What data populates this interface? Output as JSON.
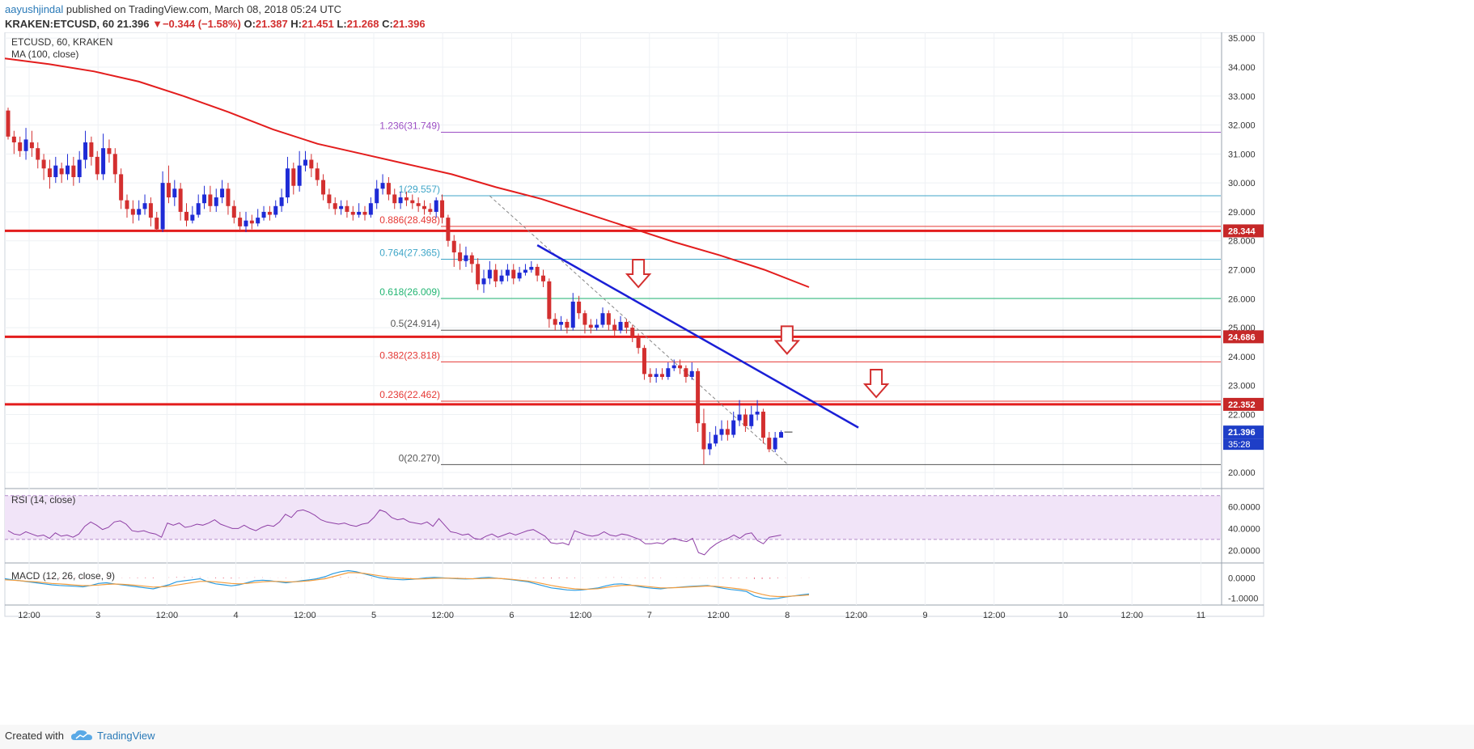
{
  "header": {
    "author": "aayushjindal",
    "published": "published on TradingView.com, March 08, 2018 05:24 UTC",
    "symbol": "KRAKEN:ETCUSD, 60",
    "price": "21.396",
    "change_arrow": "▼",
    "change": "−0.344 (−1.58%)",
    "o_label": "O:",
    "o_value": "21.387",
    "h_label": "H:",
    "h_value": "21.451",
    "l_label": "L:",
    "l_value": "21.268",
    "c_label": "C:",
    "c_value": "21.396"
  },
  "footer": {
    "created_with": "Created with",
    "brand": "TradingView"
  },
  "colors": {
    "up": "#1e2bd6",
    "down": "#d32f2f",
    "ma": "#e31d1d",
    "trend": "#1a1fd6",
    "fib_red": "#e53935",
    "fib_blue": "#3fa6c8",
    "fib_green": "#22b573",
    "fib_purple": "#9c4fc4",
    "rsi": "#8e3fa5",
    "macd": "#2a9be0",
    "signal": "#f39c3c",
    "hist": "#e0304d"
  },
  "chart_data": {
    "type": "candlestick",
    "title": "ETCUSD, 60, KRAKEN",
    "indicator_label": "MA (100, close)",
    "ylim": [
      19.5,
      35.2
    ],
    "y_ticks": [
      "20.000",
      "21.000",
      "22.000",
      "23.000",
      "24.000",
      "25.000",
      "26.000",
      "27.000",
      "28.000",
      "29.000",
      "30.000",
      "31.000",
      "32.000",
      "33.000",
      "34.000",
      "35.000"
    ],
    "x_ticks": [
      "12:00",
      "3",
      "12:00",
      "4",
      "12:00",
      "5",
      "12:00",
      "6",
      "12:00",
      "7",
      "12:00",
      "8",
      "12:00",
      "9",
      "12:00",
      "10",
      "12:00",
      "11"
    ],
    "candles": [
      [
        32.5,
        31.6,
        32.6,
        31.5
      ],
      [
        31.6,
        31.4,
        31.8,
        31.0
      ],
      [
        31.4,
        31.1,
        31.6,
        30.9
      ],
      [
        31.1,
        31.5,
        31.9,
        30.8
      ],
      [
        31.4,
        31.2,
        31.8,
        30.9
      ],
      [
        31.2,
        30.8,
        31.4,
        30.5
      ],
      [
        30.8,
        30.5,
        31.0,
        30.1
      ],
      [
        30.5,
        30.2,
        30.8,
        29.8
      ],
      [
        30.2,
        30.6,
        30.9,
        30.0
      ],
      [
        30.5,
        30.3,
        30.7,
        30.0
      ],
      [
        30.3,
        30.6,
        31.0,
        30.1
      ],
      [
        30.6,
        30.2,
        30.9,
        29.9
      ],
      [
        30.2,
        30.8,
        31.1,
        30.0
      ],
      [
        30.8,
        31.4,
        31.8,
        30.5
      ],
      [
        31.4,
        30.9,
        31.6,
        30.6
      ],
      [
        30.9,
        30.3,
        31.1,
        30.1
      ],
      [
        30.3,
        31.2,
        31.7,
        30.1
      ],
      [
        31.2,
        31.0,
        31.5,
        30.7
      ],
      [
        31.0,
        30.3,
        31.2,
        30.0
      ],
      [
        30.3,
        29.4,
        30.5,
        29.1
      ],
      [
        29.4,
        29.1,
        29.6,
        28.8
      ],
      [
        29.1,
        28.9,
        29.4,
        28.6
      ],
      [
        28.9,
        29.1,
        29.4,
        28.7
      ],
      [
        29.1,
        29.3,
        29.6,
        28.9
      ],
      [
        29.3,
        28.8,
        29.5,
        28.5
      ],
      [
        28.8,
        28.4,
        29.0,
        28.3
      ],
      [
        28.4,
        30.0,
        30.4,
        28.3
      ],
      [
        30.0,
        29.5,
        30.6,
        29.3
      ],
      [
        29.5,
        29.8,
        30.1,
        29.2
      ],
      [
        29.8,
        29.0,
        30.0,
        28.7
      ],
      [
        29.0,
        28.7,
        29.3,
        28.5
      ],
      [
        28.7,
        28.9,
        29.2,
        28.6
      ],
      [
        28.9,
        29.3,
        29.6,
        28.8
      ],
      [
        29.3,
        29.6,
        29.9,
        29.1
      ],
      [
        29.6,
        29.2,
        29.9,
        29.0
      ],
      [
        29.2,
        29.5,
        29.8,
        29.0
      ],
      [
        29.5,
        29.8,
        30.1,
        29.3
      ],
      [
        29.8,
        29.2,
        30.0,
        28.9
      ],
      [
        29.2,
        28.8,
        29.4,
        28.6
      ],
      [
        28.8,
        28.5,
        29.0,
        28.3
      ],
      [
        28.5,
        28.7,
        29.0,
        28.3
      ],
      [
        28.7,
        28.6,
        28.9,
        28.4
      ],
      [
        28.6,
        28.8,
        29.1,
        28.5
      ],
      [
        28.8,
        29.0,
        29.2,
        28.7
      ],
      [
        29.0,
        28.9,
        29.2,
        28.7
      ],
      [
        28.9,
        29.2,
        29.4,
        28.8
      ],
      [
        29.2,
        29.5,
        29.8,
        29.0
      ],
      [
        29.5,
        30.5,
        30.9,
        29.3
      ],
      [
        30.5,
        29.9,
        30.7,
        29.6
      ],
      [
        29.9,
        30.6,
        31.1,
        29.7
      ],
      [
        30.6,
        30.8,
        31.1,
        30.4
      ],
      [
        30.8,
        30.5,
        31.0,
        30.2
      ],
      [
        30.5,
        30.1,
        30.7,
        29.9
      ],
      [
        30.1,
        29.6,
        30.3,
        29.4
      ],
      [
        29.6,
        29.3,
        29.8,
        29.1
      ],
      [
        29.3,
        29.1,
        29.5,
        28.9
      ],
      [
        29.1,
        29.2,
        29.4,
        28.9
      ],
      [
        29.2,
        29.0,
        29.4,
        28.8
      ],
      [
        29.0,
        28.9,
        29.2,
        28.7
      ],
      [
        28.9,
        29.0,
        29.3,
        28.8
      ],
      [
        29.0,
        28.9,
        29.2,
        28.7
      ],
      [
        28.9,
        29.3,
        29.5,
        28.8
      ],
      [
        29.3,
        29.8,
        30.1,
        29.1
      ],
      [
        29.8,
        30.0,
        30.3,
        29.6
      ],
      [
        30.0,
        29.6,
        30.2,
        29.4
      ],
      [
        29.6,
        29.3,
        29.8,
        29.1
      ],
      [
        29.3,
        29.5,
        29.7,
        29.1
      ],
      [
        29.5,
        29.4,
        29.7,
        29.2
      ],
      [
        29.4,
        29.3,
        29.6,
        29.1
      ],
      [
        29.3,
        29.2,
        29.5,
        29.0
      ],
      [
        29.2,
        29.1,
        29.4,
        28.9
      ],
      [
        29.1,
        29.0,
        29.3,
        28.9
      ],
      [
        29.0,
        29.4,
        29.5,
        28.8
      ],
      [
        29.4,
        28.8,
        29.6,
        28.6
      ],
      [
        28.8,
        28.0,
        28.9,
        27.8
      ],
      [
        28.0,
        27.6,
        28.2,
        27.1
      ],
      [
        27.6,
        27.3,
        27.9,
        27.0
      ],
      [
        27.3,
        27.5,
        27.8,
        27.1
      ],
      [
        27.5,
        27.2,
        27.6,
        26.9
      ],
      [
        27.2,
        26.5,
        27.4,
        26.3
      ],
      [
        26.5,
        26.7,
        27.0,
        26.2
      ],
      [
        26.7,
        27.0,
        27.3,
        26.5
      ],
      [
        27.0,
        26.6,
        27.2,
        26.4
      ],
      [
        26.6,
        26.8,
        27.0,
        26.5
      ],
      [
        26.8,
        27.0,
        27.2,
        26.6
      ],
      [
        27.0,
        26.7,
        27.2,
        26.5
      ],
      [
        26.7,
        26.9,
        27.1,
        26.6
      ],
      [
        26.9,
        27.0,
        27.2,
        26.8
      ],
      [
        27.0,
        27.1,
        27.3,
        26.9
      ],
      [
        27.1,
        26.8,
        27.2,
        26.6
      ],
      [
        26.8,
        26.6,
        27.0,
        26.4
      ],
      [
        26.6,
        25.3,
        26.7,
        25.0
      ],
      [
        25.3,
        25.1,
        25.5,
        24.9
      ],
      [
        25.1,
        25.2,
        25.4,
        24.9
      ],
      [
        25.2,
        25.0,
        25.3,
        24.8
      ],
      [
        25.0,
        25.9,
        26.2,
        24.9
      ],
      [
        25.9,
        25.5,
        26.1,
        25.3
      ],
      [
        25.5,
        25.1,
        25.6,
        24.8
      ],
      [
        25.1,
        25.0,
        25.3,
        24.8
      ],
      [
        25.0,
        25.1,
        25.3,
        24.9
      ],
      [
        25.1,
        25.5,
        25.7,
        25.0
      ],
      [
        25.5,
        25.1,
        25.6,
        24.9
      ],
      [
        25.1,
        24.9,
        25.3,
        24.7
      ],
      [
        24.9,
        25.2,
        25.4,
        24.8
      ],
      [
        25.2,
        25.0,
        25.3,
        24.8
      ],
      [
        25.0,
        24.7,
        25.1,
        24.5
      ],
      [
        24.7,
        24.3,
        24.8,
        24.1
      ],
      [
        24.3,
        23.4,
        24.4,
        23.2
      ],
      [
        23.4,
        23.3,
        23.6,
        23.1
      ],
      [
        23.3,
        23.4,
        23.6,
        23.1
      ],
      [
        23.4,
        23.3,
        23.6,
        23.2
      ],
      [
        23.3,
        23.6,
        23.8,
        23.2
      ],
      [
        23.6,
        23.7,
        23.9,
        23.5
      ],
      [
        23.7,
        23.6,
        23.9,
        23.4
      ],
      [
        23.6,
        23.3,
        23.7,
        23.1
      ],
      [
        23.3,
        23.5,
        23.8,
        23.2
      ],
      [
        23.5,
        21.7,
        23.6,
        21.4
      ],
      [
        21.7,
        20.8,
        22.2,
        20.27
      ],
      [
        20.8,
        21.0,
        21.4,
        20.6
      ],
      [
        21.0,
        21.3,
        21.6,
        20.9
      ],
      [
        21.3,
        21.5,
        21.8,
        21.1
      ],
      [
        21.5,
        21.3,
        21.8,
        21.1
      ],
      [
        21.3,
        21.8,
        22.1,
        21.2
      ],
      [
        21.8,
        22.0,
        22.5,
        21.6
      ],
      [
        22.0,
        21.6,
        22.2,
        21.4
      ],
      [
        21.6,
        22.0,
        22.3,
        21.5
      ],
      [
        22.0,
        22.1,
        22.5,
        21.8
      ],
      [
        22.1,
        21.2,
        22.2,
        21.0
      ],
      [
        21.2,
        20.8,
        21.4,
        20.7
      ],
      [
        20.8,
        21.2,
        21.4,
        20.7
      ],
      [
        21.2,
        21.396,
        21.451,
        21.268
      ]
    ],
    "moving_average": {
      "label": "MA (100, close)",
      "values": [
        34.3,
        34.1,
        33.85,
        33.5,
        33.0,
        32.45,
        31.85,
        31.35,
        31.0,
        30.65,
        30.3,
        29.85,
        29.45,
        28.95,
        28.45,
        27.95,
        27.5,
        27.0,
        26.4
      ]
    },
    "fib_levels": [
      {
        "label": "1.236(31.749)",
        "value": 31.749,
        "color": "#9c4fc4"
      },
      {
        "label": "1(29.557)",
        "value": 29.557,
        "color": "#3fa6c8"
      },
      {
        "label": "0.886(28.498)",
        "value": 28.498,
        "color": "#e53935"
      },
      {
        "label": "0.764(27.365)",
        "value": 27.365,
        "color": "#3fa6c8"
      },
      {
        "label": "0.618(26.009)",
        "value": 26.009,
        "color": "#22b573"
      },
      {
        "label": "0.5(24.914)",
        "value": 24.914,
        "color": "#555555"
      },
      {
        "label": "0.382(23.818)",
        "value": 23.818,
        "color": "#e53935"
      },
      {
        "label": "0.236(22.462)",
        "value": 22.462,
        "color": "#e53935"
      },
      {
        "label": "0(20.270)",
        "value": 20.27,
        "color": "#555555"
      }
    ],
    "horizontal_levels": [
      {
        "label": "28.344",
        "value": 28.344
      },
      {
        "label": "24.686",
        "value": 24.686
      },
      {
        "label": "22.352",
        "value": 22.352
      }
    ],
    "trendline": {
      "start": [
        89,
        27.85
      ],
      "end": [
        143,
        21.55
      ]
    },
    "retracement_line": {
      "start": [
        81,
        29.55
      ],
      "end": [
        131,
        20.3
      ]
    },
    "arrows": [
      {
        "index": 106,
        "value": 26.4
      },
      {
        "index": 131,
        "value": 24.1
      },
      {
        "index": 146,
        "value": 22.6
      }
    ],
    "last_price": {
      "label": "21.396",
      "value": 21.396
    },
    "countdown": "35:28",
    "rsi": {
      "label": "RSI (14, close)",
      "ticks": [
        "20.0000",
        "40.0000",
        "60.0000"
      ],
      "ylim": [
        10,
        75
      ],
      "band": [
        30,
        70
      ],
      "values": [
        38,
        35,
        34,
        37,
        35,
        33,
        34,
        31,
        36,
        33,
        34,
        32,
        35,
        42,
        46,
        43,
        39,
        41,
        46,
        47,
        44,
        38,
        37,
        38,
        36,
        35,
        32,
        45,
        43,
        45,
        41,
        42,
        44,
        43,
        45,
        48,
        44,
        42,
        40,
        40,
        43,
        40,
        38,
        41,
        43,
        42,
        46,
        53,
        50,
        56,
        57,
        55,
        52,
        48,
        46,
        45,
        44,
        45,
        43,
        42,
        44,
        45,
        50,
        57,
        55,
        50,
        48,
        49,
        46,
        45,
        44,
        46,
        42,
        49,
        43,
        37,
        36,
        34,
        35,
        31,
        30,
        33,
        35,
        32,
        34,
        36,
        34,
        36,
        38,
        39,
        36,
        33,
        27,
        26,
        27,
        25,
        38,
        36,
        34,
        33,
        34,
        37,
        34,
        33,
        35,
        34,
        32,
        30,
        26,
        26,
        27,
        26,
        30,
        31,
        29,
        28,
        31,
        18,
        16,
        22,
        26,
        29,
        31,
        34,
        31,
        35,
        36,
        29,
        26,
        32,
        33,
        34
      ]
    },
    "macd": {
      "label": "MACD (12, 26, close, 9)",
      "ticks": [
        "0.0000",
        "-1.0000"
      ],
      "ylim": [
        -1.35,
        0.65
      ],
      "macd_values": [
        -0.05,
        -0.1,
        -0.15,
        -0.2,
        -0.25,
        -0.3,
        -0.35,
        -0.38,
        -0.4,
        -0.42,
        -0.45,
        -0.38,
        -0.28,
        -0.25,
        -0.3,
        -0.35,
        -0.4,
        -0.45,
        -0.5,
        -0.55,
        -0.45,
        -0.35,
        -0.2,
        -0.15,
        -0.1,
        -0.05,
        -0.2,
        -0.3,
        -0.35,
        -0.4,
        -0.35,
        -0.25,
        -0.15,
        -0.12,
        -0.15,
        -0.2,
        -0.25,
        -0.2,
        -0.15,
        -0.1,
        -0.05,
        0.05,
        0.2,
        0.3,
        0.35,
        0.3,
        0.2,
        0.1,
        0.0,
        -0.05,
        -0.08,
        -0.1,
        -0.08,
        -0.05,
        0.0,
        0.02,
        0.0,
        -0.03,
        -0.05,
        -0.06,
        -0.05,
        0.0,
        0.02,
        -0.02,
        -0.06,
        -0.1,
        -0.15,
        -0.2,
        -0.3,
        -0.4,
        -0.5,
        -0.55,
        -0.6,
        -0.62,
        -0.6,
        -0.55,
        -0.5,
        -0.4,
        -0.32,
        -0.3,
        -0.35,
        -0.42,
        -0.48,
        -0.52,
        -0.55,
        -0.5,
        -0.48,
        -0.45,
        -0.42,
        -0.4,
        -0.38,
        -0.45,
        -0.52,
        -0.58,
        -0.62,
        -0.68,
        -0.9,
        -1.0,
        -1.05,
        -1.02,
        -0.95,
        -0.9,
        -0.85,
        -0.8
      ],
      "signal_values": [
        -0.1,
        -0.12,
        -0.15,
        -0.18,
        -0.2,
        -0.24,
        -0.28,
        -0.3,
        -0.33,
        -0.36,
        -0.39,
        -0.38,
        -0.36,
        -0.33,
        -0.31,
        -0.32,
        -0.35,
        -0.38,
        -0.42,
        -0.46,
        -0.45,
        -0.42,
        -0.36,
        -0.3,
        -0.24,
        -0.18,
        -0.18,
        -0.2,
        -0.24,
        -0.28,
        -0.3,
        -0.28,
        -0.24,
        -0.2,
        -0.18,
        -0.18,
        -0.2,
        -0.2,
        -0.18,
        -0.15,
        -0.1,
        -0.05,
        0.05,
        0.15,
        0.25,
        0.25,
        0.22,
        0.16,
        0.1,
        0.04,
        0.0,
        -0.03,
        -0.05,
        -0.06,
        -0.05,
        -0.03,
        -0.02,
        -0.02,
        -0.03,
        -0.04,
        -0.05,
        -0.04,
        -0.03,
        -0.03,
        -0.05,
        -0.08,
        -0.12,
        -0.16,
        -0.22,
        -0.3,
        -0.38,
        -0.45,
        -0.5,
        -0.55,
        -0.57,
        -0.56,
        -0.54,
        -0.48,
        -0.42,
        -0.38,
        -0.37,
        -0.39,
        -0.42,
        -0.46,
        -0.5,
        -0.5,
        -0.49,
        -0.47,
        -0.45,
        -0.43,
        -0.41,
        -0.42,
        -0.46,
        -0.5,
        -0.55,
        -0.6,
        -0.72,
        -0.82,
        -0.9,
        -0.93,
        -0.93,
        -0.9,
        -0.88,
        -0.85
      ]
    }
  }
}
